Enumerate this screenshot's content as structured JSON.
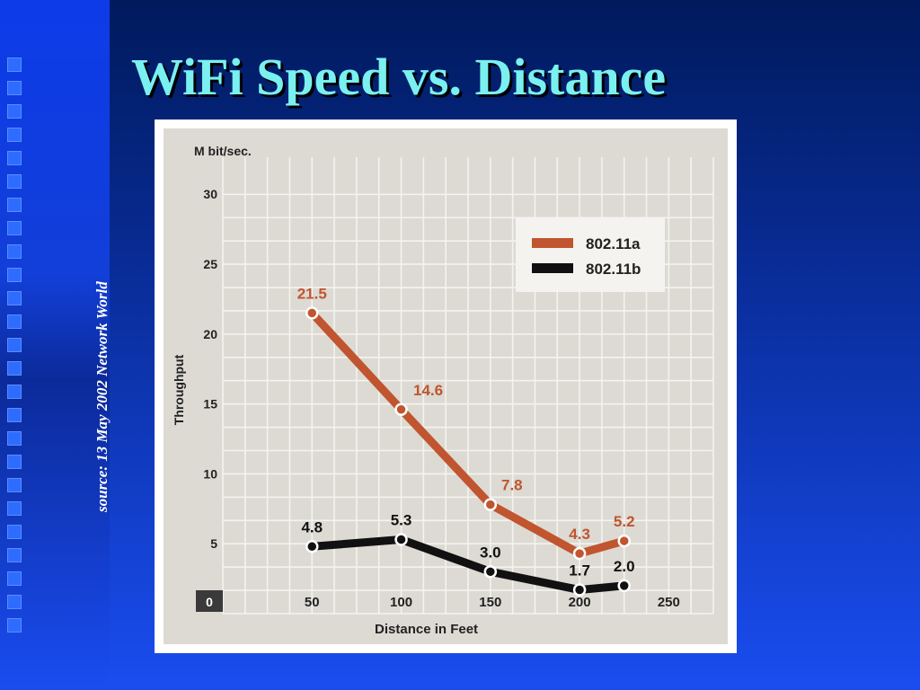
{
  "slide": {
    "title": "WiFi Speed vs. Distance",
    "source": "source: 13 May 2002 Network World"
  },
  "colors": {
    "title": "#7af0f0",
    "series_a": "#c0552f",
    "series_b": "#111111",
    "plot_bg": "#dcdad3"
  },
  "chart_data": {
    "type": "line",
    "title": "",
    "unit_label": "M bit/sec.",
    "ylabel": "Throughput",
    "xlabel": "Distance in Feet",
    "xlim": [
      0,
      275
    ],
    "ylim": [
      0,
      32
    ],
    "xticks": [
      0,
      50,
      100,
      150,
      200,
      250
    ],
    "yticks": [
      5,
      10,
      15,
      20,
      25,
      30
    ],
    "grid": true,
    "legend_position": "top-right",
    "series": [
      {
        "name": "802.11a",
        "color": "#c0552f",
        "x": [
          50,
          100,
          150,
          200,
          225
        ],
        "y": [
          21.5,
          14.6,
          7.8,
          4.3,
          5.2
        ],
        "labels": [
          "21.5",
          "14.6",
          "7.8",
          "4.3",
          "5.2"
        ]
      },
      {
        "name": "802.11b",
        "color": "#111111",
        "x": [
          50,
          100,
          150,
          200,
          225
        ],
        "y": [
          4.8,
          5.3,
          3.0,
          1.7,
          2.0
        ],
        "labels": [
          "4.8",
          "5.3",
          "3.0",
          "1.7",
          "2.0"
        ]
      }
    ]
  }
}
